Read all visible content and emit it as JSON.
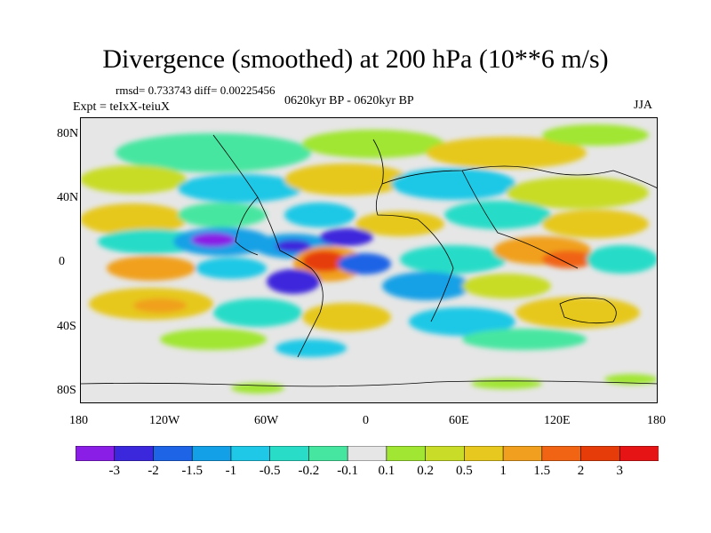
{
  "title": "Divergence (smoothed) at 200 hPa (10**6 m/s)",
  "stats": "rmsd= 0.733743 diff= 0.00225456",
  "experiment": "Expt = teIxX-teiuX",
  "period": "0620kyr BP - 0620kyr BP",
  "season": "JJA",
  "axes": {
    "y_ticks": [
      "80N",
      "40N",
      "0",
      "40S",
      "80S"
    ],
    "x_ticks": [
      "180",
      "120W",
      "60W",
      "0",
      "60E",
      "120E",
      "180"
    ]
  },
  "colorbar": {
    "labels": [
      "-3",
      "-2",
      "-1.5",
      "-1",
      "-0.5",
      "-0.2",
      "-0.1",
      "0.1",
      "0.2",
      "0.5",
      "1",
      "1.5",
      "2",
      "3"
    ],
    "colors": [
      "#8a1ee6",
      "#3c28dc",
      "#1e64e6",
      "#14a0e6",
      "#1ec8e6",
      "#28dcc8",
      "#46e6a0",
      "#e6e6e6",
      "#a0e632",
      "#c8dc28",
      "#e6c81e",
      "#f0a01e",
      "#f06414",
      "#e63c0a",
      "#e61414"
    ]
  },
  "colors": {
    "neutral": "#e6e6e6",
    "coastline": "#000000"
  }
}
